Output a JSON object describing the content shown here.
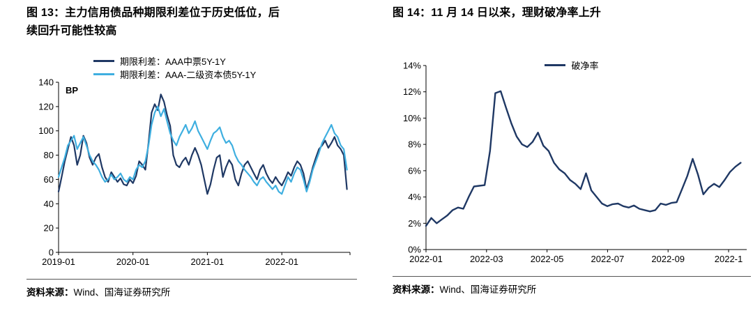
{
  "page": {
    "background": "#ffffff"
  },
  "chart_data": [
    {
      "type": "line",
      "title": "图 13：主力信用债品种期限利差位于历史低位，后续回升可能性较高",
      "caption_line1": "图 13：主力信用债品种期限利差位于历史低位，后",
      "caption_line2": "续回升可能性较高",
      "ylabel": "BP",
      "source": {
        "label": "资料来源：",
        "text": "Wind、国海证券研究所"
      },
      "legend_position": "top",
      "grid": false,
      "series": [
        {
          "name": "期限利差：AAA中票5Y-1Y",
          "color": "#1f3864",
          "width": 2.2,
          "values": [
            50,
            62,
            75,
            85,
            95,
            88,
            72,
            80,
            96,
            90,
            78,
            72,
            78,
            81,
            70,
            62,
            58,
            66,
            62,
            58,
            61,
            56,
            55,
            60,
            57,
            63,
            75,
            72,
            68,
            90,
            115,
            122,
            117,
            130,
            124,
            113,
            104,
            80,
            72,
            70,
            75,
            78,
            72,
            80,
            86,
            80,
            72,
            60,
            48,
            56,
            68,
            78,
            80,
            62,
            70,
            76,
            72,
            60,
            55,
            65,
            72,
            75,
            70,
            65,
            60,
            68,
            72,
            65,
            60,
            57,
            62,
            58,
            55,
            60,
            66,
            63,
            70,
            75,
            72,
            65,
            52,
            60,
            70,
            78,
            85,
            88,
            92,
            86,
            90,
            95,
            88,
            85,
            80,
            52
          ]
        },
        {
          "name": "期限利差：AAA-二级资本债5Y-1Y",
          "color": "#3fafe0",
          "width": 2.2,
          "values": [
            62,
            70,
            78,
            88,
            92,
            96,
            85,
            90,
            95,
            88,
            80,
            75,
            72,
            68,
            62,
            58,
            60,
            64,
            60,
            62,
            65,
            60,
            58,
            62,
            60,
            68,
            72,
            70,
            75,
            88,
            105,
            115,
            120,
            112,
            118,
            108,
            98,
            92,
            88,
            95,
            100,
            105,
            98,
            102,
            108,
            100,
            95,
            90,
            85,
            92,
            98,
            100,
            103,
            95,
            90,
            92,
            88,
            80,
            75,
            72,
            68,
            65,
            62,
            58,
            55,
            60,
            62,
            58,
            55,
            52,
            55,
            50,
            48,
            55,
            62,
            58,
            65,
            70,
            68,
            60,
            50,
            58,
            68,
            75,
            82,
            90,
            95,
            100,
            105,
            98,
            95,
            88,
            85,
            68
          ]
        }
      ],
      "layout": {
        "margins": {
          "l": 46,
          "r": 10,
          "t": 20,
          "b": 28
        },
        "xlim": [
          0,
          47
        ],
        "ylim": [
          0,
          140
        ],
        "data_xrange": [
          0,
          46.5
        ],
        "xticks": [
          {
            "v": 0,
            "label": "2019-01"
          },
          {
            "v": 12,
            "label": "2020-01"
          },
          {
            "v": 24,
            "label": "2021-01"
          },
          {
            "v": 36,
            "label": "2022-01"
          },
          {
            "v": 47,
            "label": ""
          }
        ],
        "yticks": [
          {
            "v": 0,
            "label": "0"
          },
          {
            "v": 20,
            "label": "20"
          },
          {
            "v": 40,
            "label": "40"
          },
          {
            "v": 60,
            "label": "60"
          },
          {
            "v": 80,
            "label": "80"
          },
          {
            "v": 100,
            "label": "100"
          },
          {
            "v": 120,
            "label": "120"
          },
          {
            "v": 140,
            "label": "140"
          }
        ],
        "unit_label": "BP"
      }
    },
    {
      "type": "line",
      "title": "图 14：11 月 14 日以来，理财破净率上升",
      "caption_line1": "图 14：11 月 14 日以来，理财破净率上升",
      "ylabel": "",
      "source": {
        "label": "资料来源：",
        "text": "Wind、国海证券研究所"
      },
      "legend_position": "top",
      "grid": false,
      "series": [
        {
          "name": "破净率",
          "color": "#1f3864",
          "width": 2.4,
          "values": [
            1.8,
            2.4,
            2.0,
            2.3,
            2.6,
            3.0,
            3.2,
            3.1,
            4.0,
            4.8,
            4.85,
            4.9,
            7.5,
            11.9,
            12.05,
            10.8,
            9.6,
            8.6,
            8.0,
            7.8,
            8.2,
            8.9,
            7.9,
            7.5,
            6.6,
            6.1,
            5.8,
            5.3,
            5.0,
            4.6,
            5.8,
            4.5,
            4.0,
            3.5,
            3.3,
            3.45,
            3.5,
            3.3,
            3.2,
            3.35,
            3.1,
            3.0,
            2.9,
            3.0,
            3.5,
            3.4,
            3.55,
            3.6,
            4.6,
            5.6,
            6.9,
            5.7,
            4.2,
            4.7,
            5.0,
            4.75,
            5.3,
            5.9,
            6.3,
            6.6
          ]
        }
      ],
      "layout": {
        "margins": {
          "l": 48,
          "r": 6,
          "t": 26,
          "b": 28
        },
        "xlim": [
          0,
          10.6
        ],
        "ylim": [
          0,
          14
        ],
        "data_xrange": [
          0,
          10.4
        ],
        "xticks": [
          {
            "v": 0,
            "label": "2022-01"
          },
          {
            "v": 2,
            "label": "2022-03"
          },
          {
            "v": 4,
            "label": "2022-05"
          },
          {
            "v": 6,
            "label": "2022-07"
          },
          {
            "v": 8,
            "label": "2022-09"
          },
          {
            "v": 10,
            "label": "2022-1"
          }
        ],
        "yticks": [
          {
            "v": 0,
            "label": "0%"
          },
          {
            "v": 2,
            "label": "2%"
          },
          {
            "v": 4,
            "label": "4%"
          },
          {
            "v": 6,
            "label": "6%"
          },
          {
            "v": 8,
            "label": "8%"
          },
          {
            "v": 10,
            "label": "10%"
          },
          {
            "v": 12,
            "label": "12%"
          },
          {
            "v": 14,
            "label": "14%"
          }
        ],
        "unit_label": ""
      }
    }
  ]
}
